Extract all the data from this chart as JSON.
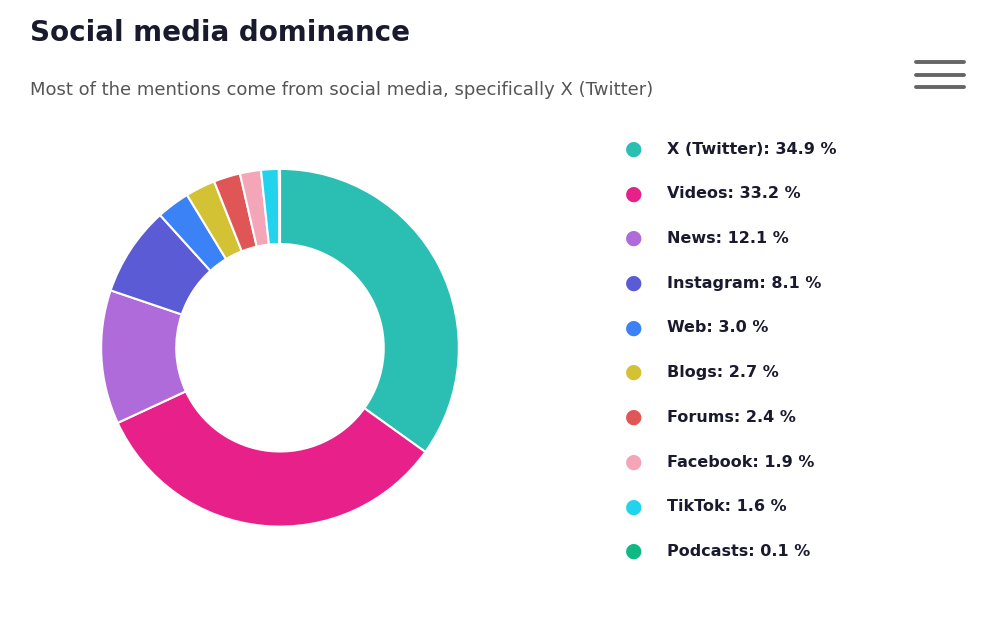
{
  "title": "Social media dominance",
  "subtitle": "Most of the mentions come from social media, specifically X (Twitter)",
  "title_fontsize": 20,
  "subtitle_fontsize": 13,
  "title_color": "#1a1a2e",
  "subtitle_color": "#555555",
  "categories": [
    "X (Twitter)",
    "Videos",
    "News",
    "Instagram",
    "Web",
    "Blogs",
    "Forums",
    "Facebook",
    "TikTok",
    "Podcasts"
  ],
  "values": [
    34.9,
    33.2,
    12.1,
    8.1,
    3.0,
    2.7,
    2.4,
    1.9,
    1.6,
    0.1
  ],
  "colors": [
    "#2bbfb3",
    "#e8218a",
    "#b06bda",
    "#5b5bd6",
    "#3b82f6",
    "#d4c235",
    "#e05555",
    "#f4a6b8",
    "#22d3ee",
    "#10b981"
  ],
  "legend_labels": [
    "X (Twitter): 34.9 %",
    "Videos: 33.2 %",
    "News: 12.1 %",
    "Instagram: 8.1 %",
    "Web: 3.0 %",
    "Blogs: 2.7 %",
    "Forums: 2.4 %",
    "Facebook: 1.9 %",
    "TikTok: 1.6 %",
    "Podcasts: 0.1 %"
  ],
  "background_color": "#ffffff",
  "wedge_edge_color": "#ffffff",
  "donut_width": 0.42
}
